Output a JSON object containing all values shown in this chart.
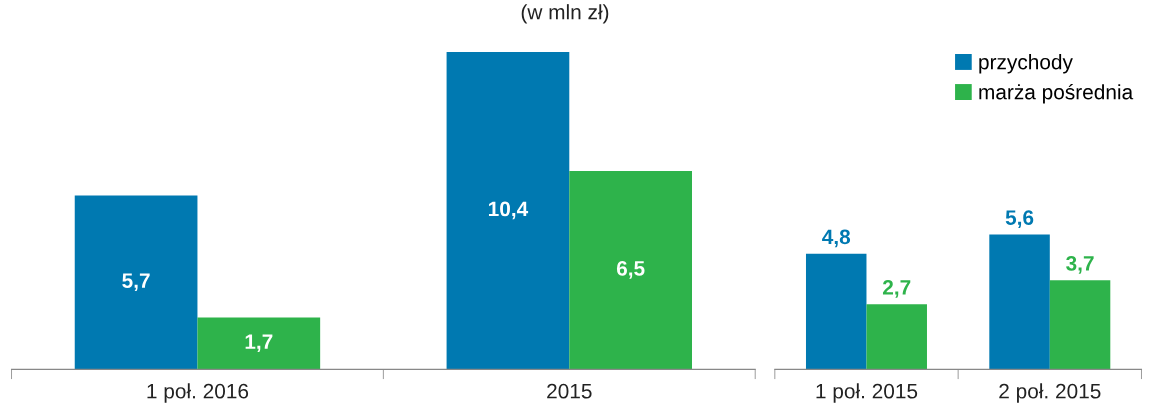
{
  "chart_data": [
    {
      "type": "bar",
      "title": "(w mln zł)",
      "categories": [
        "1 poł. 2016",
        "2015"
      ],
      "series": [
        {
          "color": "#0079b1",
          "values": [
            5.7,
            10.4
          ],
          "value_labels": [
            "5,7",
            "10,4"
          ]
        },
        {
          "color": "#2eb34b",
          "values": [
            1.7,
            6.5
          ],
          "value_labels": [
            "1,7",
            "6,5"
          ]
        }
      ],
      "legend": false,
      "grid": false
    },
    {
      "type": "bar",
      "categories": [
        "1 poł. 2015",
        "2 poł. 2015"
      ],
      "series": [
        {
          "name": "przychody",
          "color": "#0079b1",
          "values": [
            4.8,
            5.6
          ],
          "value_labels": [
            "4,8",
            "5,6"
          ]
        },
        {
          "name": "marża pośrednia",
          "color": "#2eb34b",
          "values": [
            2.7,
            3.7
          ],
          "value_labels": [
            "2,7",
            "3,7"
          ]
        }
      ],
      "legend": "top right",
      "grid": false
    }
  ]
}
